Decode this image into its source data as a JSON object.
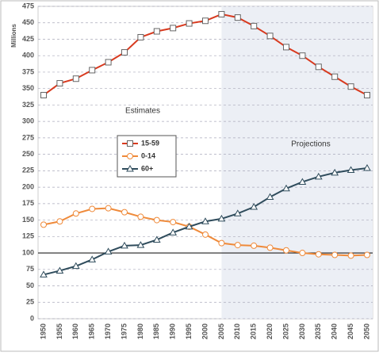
{
  "chart_data": {
    "type": "line",
    "ylabel": "Millions",
    "categories": [
      "1950",
      "1955",
      "1960",
      "1965",
      "1970",
      "1975",
      "1980",
      "1985",
      "1990",
      "1995",
      "2000",
      "2005",
      "2010",
      "2015",
      "2020",
      "2025",
      "2030",
      "2035",
      "2040",
      "2045",
      "2050"
    ],
    "series": [
      {
        "name": "15-59",
        "color": "#d83a1f",
        "marker": "square",
        "values": [
          340,
          358,
          365,
          378,
          390,
          405,
          428,
          437,
          442,
          449,
          453,
          463,
          458,
          445,
          430,
          413,
          400,
          383,
          368,
          353,
          340
        ]
      },
      {
        "name": "0-14",
        "color": "#ef8a3a",
        "marker": "circle",
        "values": [
          143,
          148,
          160,
          167,
          168,
          162,
          155,
          150,
          147,
          140,
          128,
          115,
          112,
          111,
          108,
          104,
          100,
          98,
          97,
          96,
          97
        ]
      },
      {
        "name": "60+",
        "color": "#2f4c5c",
        "marker": "triangle",
        "values": [
          67,
          73,
          80,
          90,
          102,
          111,
          112,
          120,
          131,
          140,
          148,
          152,
          160,
          170,
          185,
          198,
          208,
          216,
          222,
          226,
          229
        ]
      }
    ],
    "ylim": [
      0,
      475
    ],
    "yticks": [
      0,
      25,
      50,
      75,
      100,
      125,
      150,
      175,
      200,
      225,
      250,
      275,
      300,
      325,
      350,
      375,
      400,
      425,
      450,
      475
    ],
    "grid": true,
    "reference_line": 100,
    "shaded_from": "2005",
    "annotations": [
      "Estimates",
      "Projections"
    ]
  }
}
